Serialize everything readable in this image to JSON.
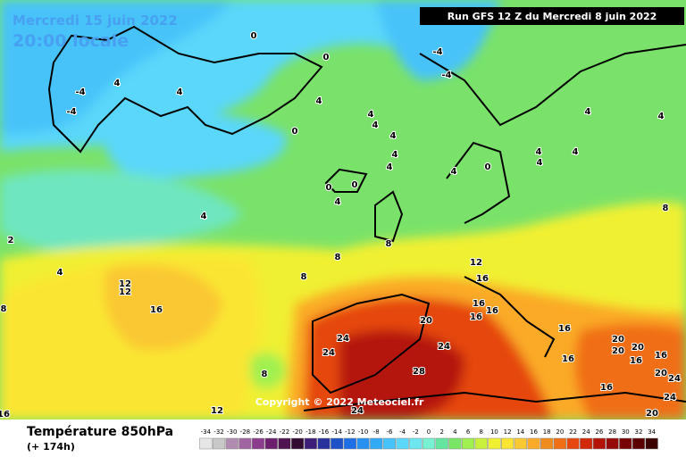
{
  "header": {
    "date": "Mercredi 15 juin 2022",
    "time": "20:00 locale",
    "run": "Run GFS 12 Z du Mercredi 8 juin 2022"
  },
  "copyright": "Copyright © 2022 Meteociel.fr",
  "footer": {
    "title": "Température 850hPa",
    "lead": "(+ 174h)"
  },
  "map": {
    "contour_labels": [
      0,
      0,
      -4,
      -4,
      -4,
      4,
      4,
      -4,
      4,
      4,
      4,
      4,
      0,
      4,
      4,
      0,
      0,
      4,
      4,
      2,
      4,
      4,
      0,
      4,
      4,
      4,
      4,
      4,
      8,
      8,
      8,
      8,
      12,
      12,
      12,
      16,
      16,
      16,
      16,
      16,
      20,
      16,
      24,
      24,
      24,
      28,
      20,
      20,
      20,
      16,
      16,
      16,
      16,
      20,
      24,
      24,
      20,
      8,
      12,
      16,
      24,
      8
    ]
  },
  "legend": {
    "values": [
      -34,
      -32,
      -30,
      -28,
      -26,
      -24,
      -22,
      -20,
      -18,
      -16,
      -14,
      -12,
      -10,
      -8,
      -6,
      -4,
      -2,
      0,
      2,
      4,
      6,
      8,
      10,
      12,
      14,
      16,
      18,
      20,
      22,
      24,
      26,
      28,
      30,
      32,
      34
    ],
    "colors": [
      "#e6e6e6",
      "#c8c8c8",
      "#b08cb0",
      "#a064a0",
      "#8c3c8c",
      "#6e1e6e",
      "#501450",
      "#320a32",
      "#3c1e78",
      "#28329c",
      "#1e50c8",
      "#1e6ee6",
      "#2890f0",
      "#32aaf5",
      "#46c3fa",
      "#5ad7fa",
      "#6ee6f0",
      "#78f0d2",
      "#64e6a0",
      "#78e664",
      "#a0f050",
      "#c8f03c",
      "#f0f032",
      "#fae632",
      "#fac832",
      "#faaa28",
      "#f08c1e",
      "#f06e14",
      "#e6460f",
      "#d2280a",
      "#b41408",
      "#960a0a",
      "#780505",
      "#5a0000",
      "#3c0000"
    ]
  }
}
